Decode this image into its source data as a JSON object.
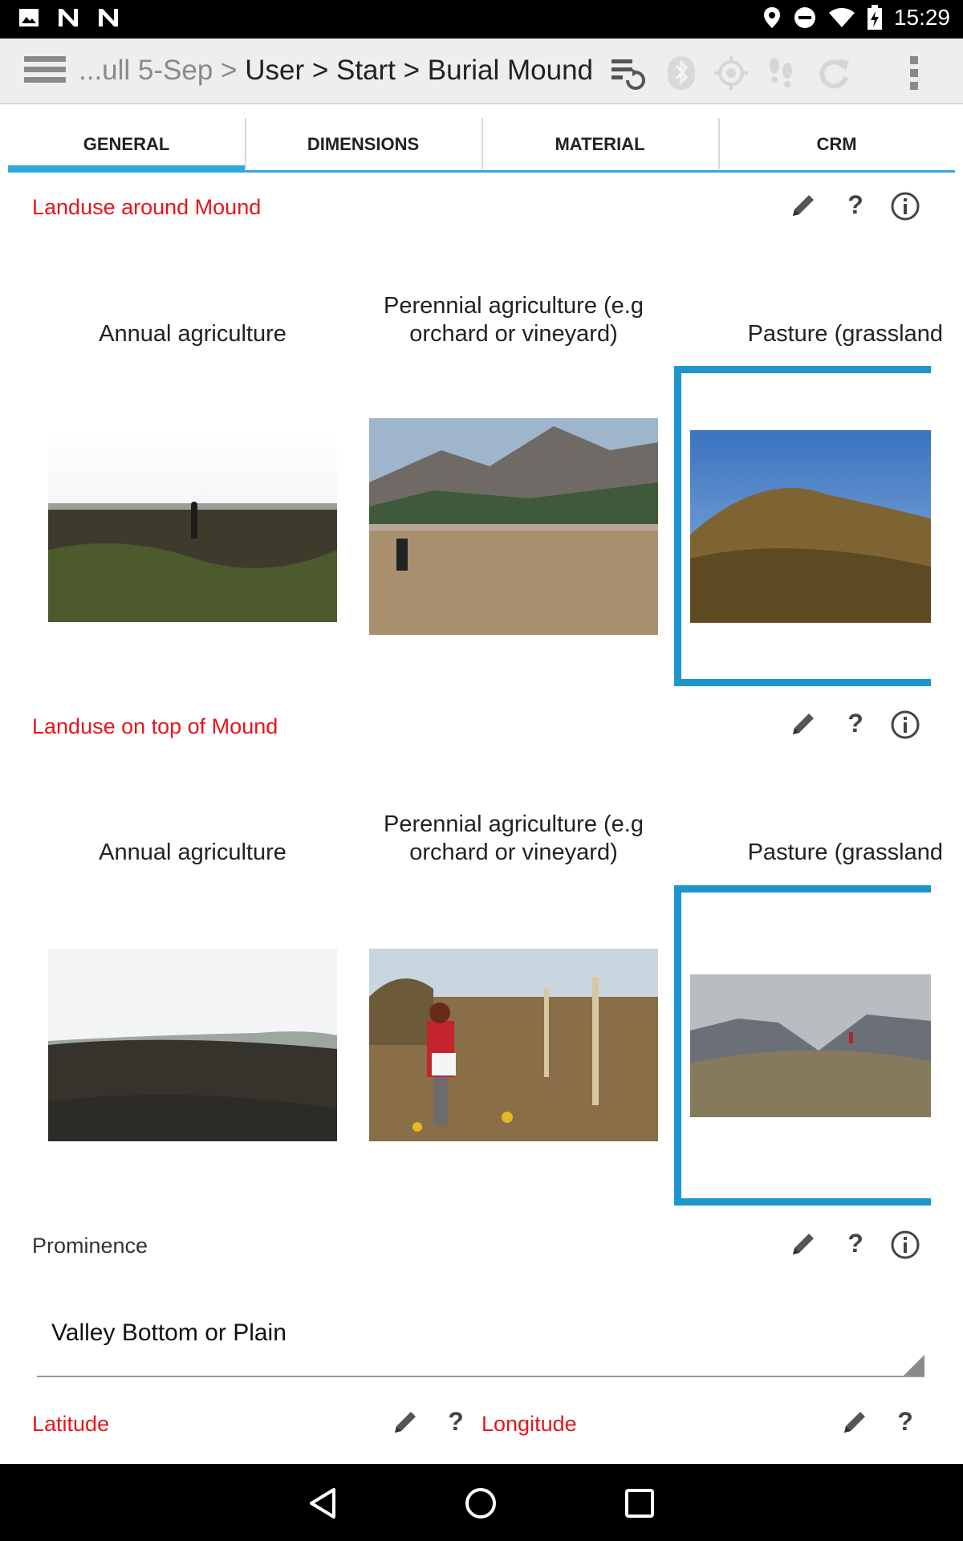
{
  "status_bar": {
    "time": "15:29"
  },
  "toolbar": {
    "breadcrumb_dim": "...ull 5-Sep >",
    "breadcrumb_main": " User > Start > Burial Mound"
  },
  "tabs": [
    "GENERAL",
    "DIMENSIONS",
    "MATERIAL",
    "CRM"
  ],
  "fields": {
    "landuse_around": {
      "label": "Landuse around Mound",
      "options": [
        "Annual agriculture",
        "Perennial agriculture (e.g orchard or vineyard)",
        "Pasture (grassland"
      ],
      "selected": "Pasture (grassland"
    },
    "landuse_top": {
      "label": "Landuse on top of Mound",
      "options": [
        "Annual agriculture",
        "Perennial agriculture (e.g orchard or vineyard)",
        "Pasture (grassland"
      ],
      "selected": "Pasture (grassland"
    },
    "prominence": {
      "label": "Prominence",
      "value": "Valley Bottom or Plain"
    },
    "latitude": {
      "label": "Latitude"
    },
    "longitude": {
      "label": "Longitude"
    }
  },
  "icons": {
    "edit": "pencil-icon",
    "help": "?",
    "info": "info-icon"
  },
  "colors": {
    "accent": "#33a8dc",
    "selection": "#1c96cc",
    "required_label": "#e8141b"
  }
}
